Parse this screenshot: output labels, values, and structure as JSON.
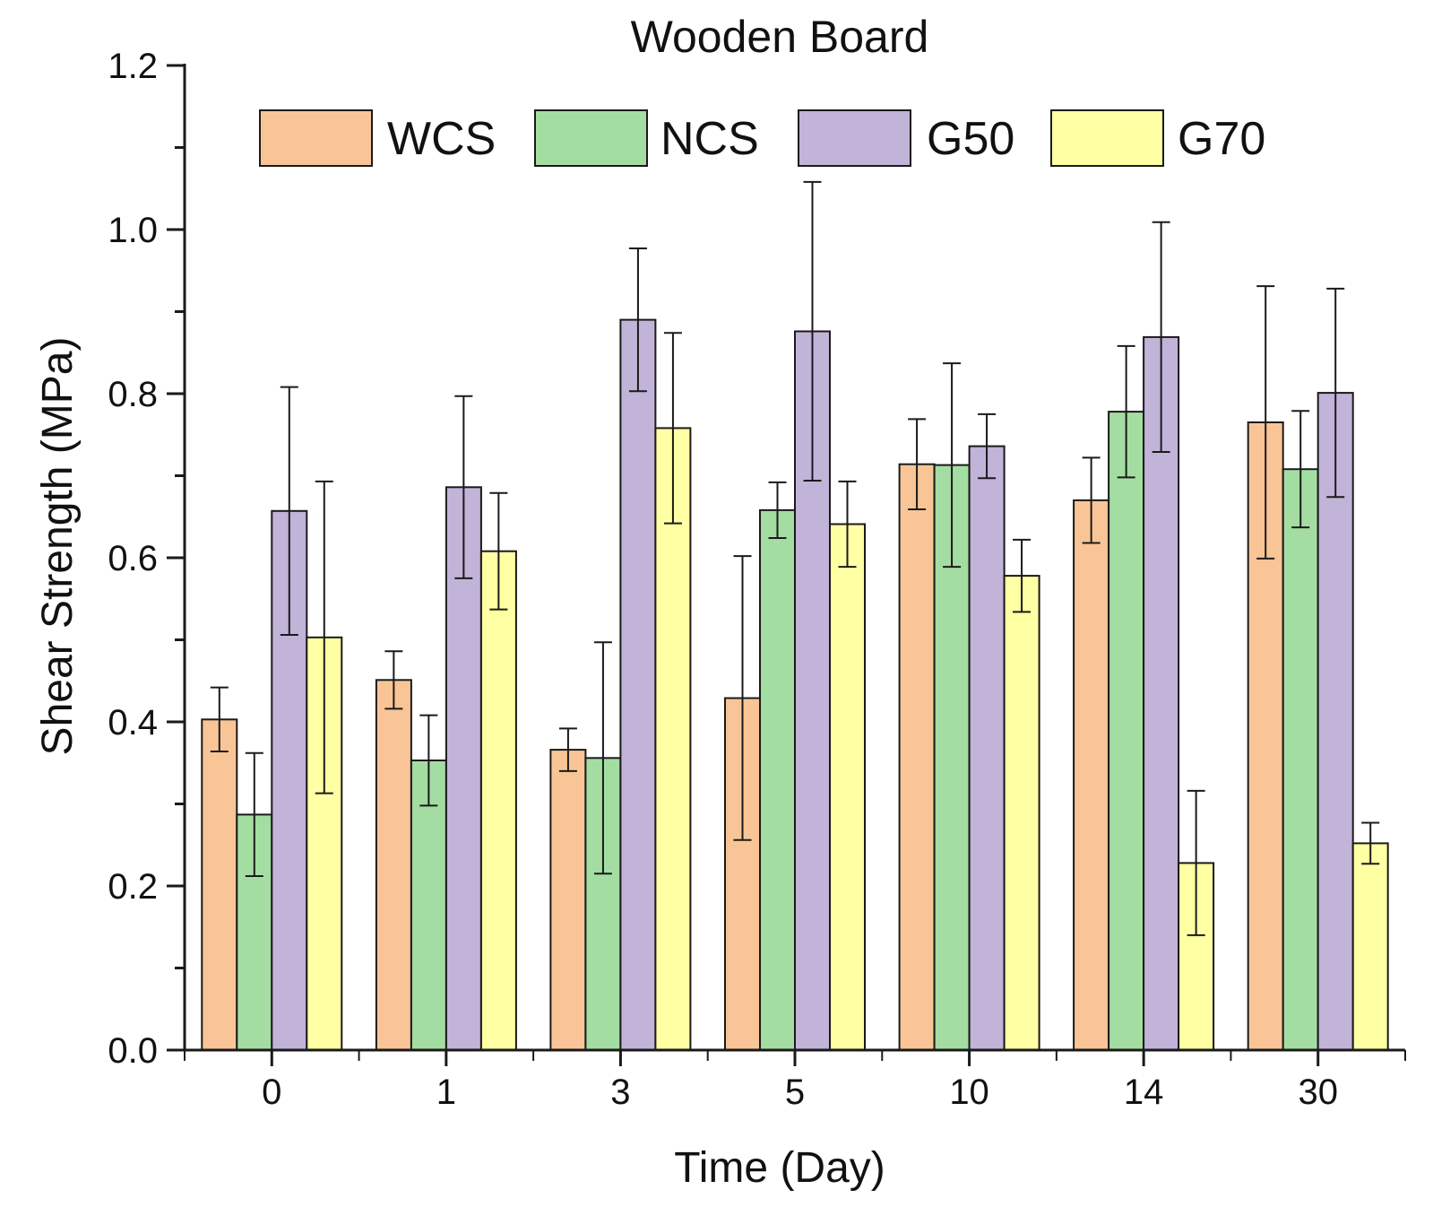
{
  "chart_data": {
    "type": "bar",
    "title": "Wooden Board",
    "xlabel": "Time (Day)",
    "ylabel": "Shear Strength (MPa)",
    "ylim": [
      0,
      1.2
    ],
    "yticks": [
      "0.0",
      "0.2",
      "0.4",
      "0.6",
      "0.8",
      "1.0",
      "1.2"
    ],
    "categories": [
      "0",
      "1",
      "3",
      "5",
      "10",
      "14",
      "30"
    ],
    "legend_position": "top",
    "grid": false,
    "error_bars": true,
    "series": [
      {
        "name": "WCS",
        "color": "#F9C596",
        "values": [
          0.403,
          0.451,
          0.366,
          0.429,
          0.714,
          0.67,
          0.765
        ],
        "errors": [
          0.039,
          0.035,
          0.026,
          0.173,
          0.055,
          0.052,
          0.166
        ]
      },
      {
        "name": "NCS",
        "color": "#A4DDA2",
        "values": [
          0.287,
          0.353,
          0.356,
          0.658,
          0.713,
          0.778,
          0.708
        ],
        "errors": [
          0.075,
          0.055,
          0.141,
          0.034,
          0.124,
          0.08,
          0.071
        ]
      },
      {
        "name": "G50",
        "color": "#C2B3D9",
        "values": [
          0.657,
          0.686,
          0.89,
          0.876,
          0.736,
          0.869,
          0.801
        ],
        "errors": [
          0.151,
          0.111,
          0.087,
          0.182,
          0.039,
          0.14,
          0.127
        ]
      },
      {
        "name": "G70",
        "color": "#FFFFA4",
        "values": [
          0.503,
          0.608,
          0.758,
          0.641,
          0.578,
          0.228,
          0.252
        ],
        "errors": [
          0.19,
          0.071,
          0.116,
          0.052,
          0.044,
          0.088,
          0.025
        ]
      }
    ]
  }
}
